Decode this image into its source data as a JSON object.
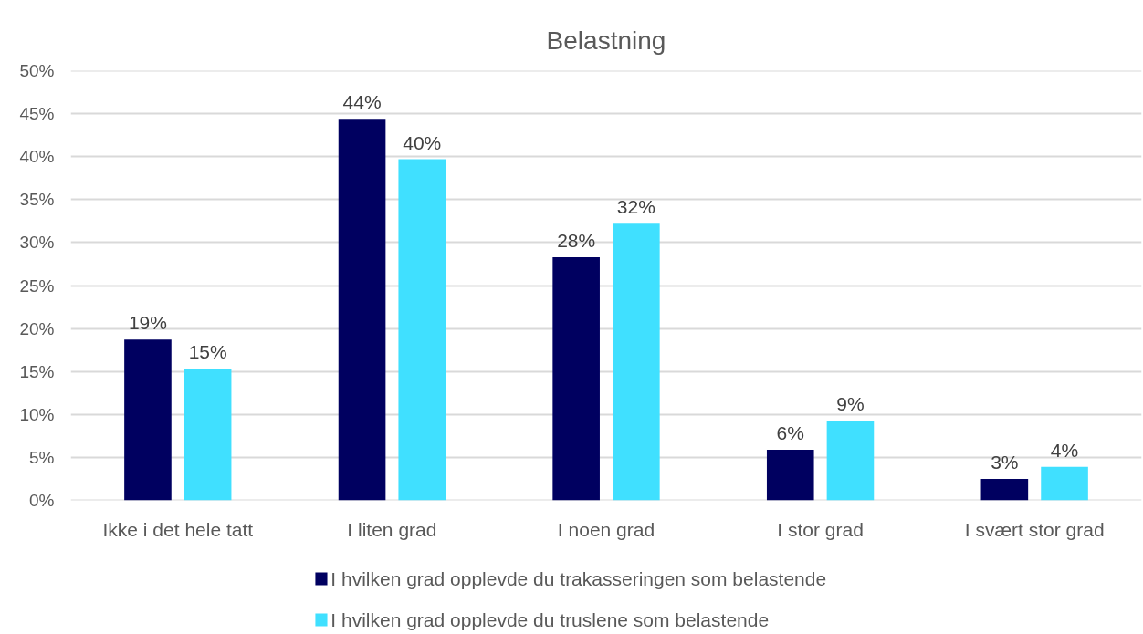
{
  "chart_data": {
    "type": "bar",
    "title": "Belastning",
    "categories": [
      "Ikke i det hele tatt",
      "I liten grad",
      "I noen grad",
      "I stor grad",
      "I svært stor grad"
    ],
    "series": [
      {
        "name": "I hvilken grad opplevde du trakasseringen som belastende",
        "color": "#000060",
        "values": [
          18.7,
          44.4,
          28.3,
          5.9,
          2.5
        ],
        "value_labels": [
          "19%",
          "44%",
          "28%",
          "6%",
          "3%"
        ]
      },
      {
        "name": "I hvilken grad opplevde du truslene som belastende",
        "color": "#40e0ff",
        "values": [
          15.3,
          39.7,
          32.2,
          9.3,
          3.9
        ],
        "value_labels": [
          "15%",
          "40%",
          "32%",
          "9%",
          "4%"
        ]
      }
    ],
    "ylim": [
      0,
      50
    ],
    "yticks": [
      {
        "value": 0,
        "label": "0%"
      },
      {
        "value": 5,
        "label": "5%"
      },
      {
        "value": 10,
        "label": "10%"
      },
      {
        "value": 15,
        "label": "15%"
      },
      {
        "value": 20,
        "label": "20%"
      },
      {
        "value": 25,
        "label": "25%"
      },
      {
        "value": 30,
        "label": "30%"
      },
      {
        "value": 35,
        "label": "35%"
      },
      {
        "value": 40,
        "label": "40%"
      },
      {
        "value": 45,
        "label": "45%"
      },
      {
        "value": 50,
        "label": "50%"
      }
    ],
    "grid": "y",
    "legend": "bottom"
  }
}
